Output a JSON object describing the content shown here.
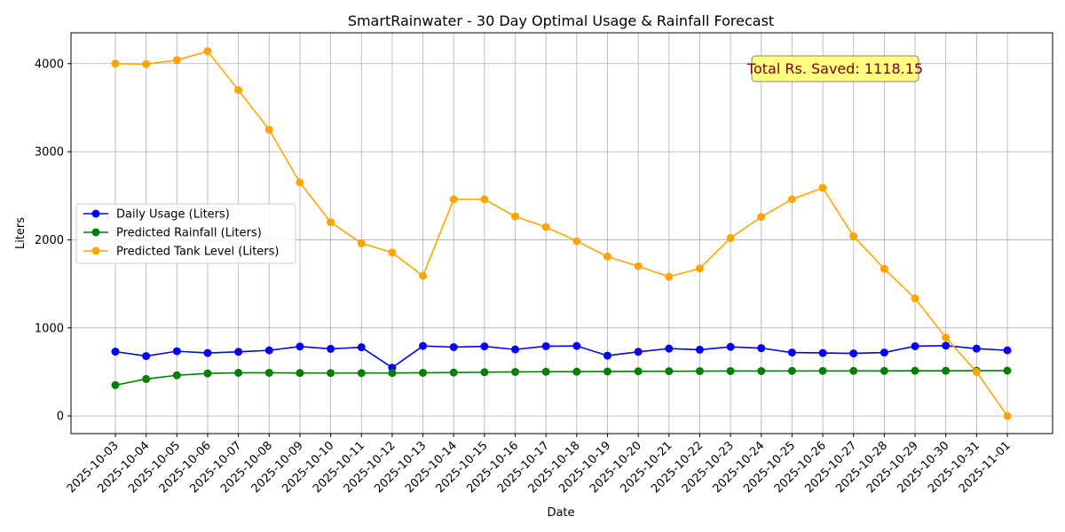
{
  "chart_data": {
    "type": "line",
    "title": "SmartRainwater - 30 Day Optimal Usage & Rainfall Forecast",
    "xlabel": "Date",
    "ylabel": "Liters",
    "ylim": [
      -200,
      4350
    ],
    "yticks": [
      0,
      1000,
      2000,
      3000,
      4000
    ],
    "grid": true,
    "legend_position": "center-left",
    "categories": [
      "2025-10-03",
      "2025-10-04",
      "2025-10-05",
      "2025-10-06",
      "2025-10-07",
      "2025-10-08",
      "2025-10-09",
      "2025-10-10",
      "2025-10-11",
      "2025-10-12",
      "2025-10-13",
      "2025-10-14",
      "2025-10-15",
      "2025-10-16",
      "2025-10-17",
      "2025-10-18",
      "2025-10-19",
      "2025-10-20",
      "2025-10-21",
      "2025-10-22",
      "2025-10-23",
      "2025-10-24",
      "2025-10-25",
      "2025-10-26",
      "2025-10-27",
      "2025-10-28",
      "2025-10-29",
      "2025-10-30",
      "2025-10-31",
      "2025-11-01"
    ],
    "series": [
      {
        "name": "Daily Usage (Liters)",
        "color": "#0000ff",
        "values": [
          730,
          680,
          735,
          715,
          728,
          745,
          788,
          762,
          780,
          548,
          795,
          782,
          790,
          755,
          792,
          795,
          685,
          728,
          765,
          752,
          785,
          770,
          720,
          715,
          710,
          720,
          792,
          798,
          765,
          745
        ]
      },
      {
        "name": "Predicted Rainfall (Liters)",
        "color": "#008000",
        "values": [
          350,
          420,
          462,
          483,
          490,
          490,
          488,
          487,
          487,
          488,
          490,
          493,
          497,
          500,
          502,
          503,
          505,
          507,
          508,
          509,
          510,
          510,
          511,
          511,
          512,
          512,
          513,
          513,
          514,
          515
        ]
      },
      {
        "name": "Predicted Tank Level (Liters)",
        "color": "#ffa500",
        "values": [
          4000,
          3995,
          4040,
          4140,
          3700,
          3250,
          2650,
          2200,
          1960,
          1855,
          1590,
          2460,
          2460,
          2265,
          2145,
          1985,
          1810,
          1700,
          1580,
          1675,
          2020,
          2260,
          2460,
          2590,
          2040,
          1670,
          1335,
          890,
          500,
          0
        ]
      }
    ],
    "annotation": {
      "text": "Total Rs. Saved: 1118.15",
      "text_color": "#800000",
      "box_color": "#ffff80",
      "border_color": "#808080"
    }
  }
}
